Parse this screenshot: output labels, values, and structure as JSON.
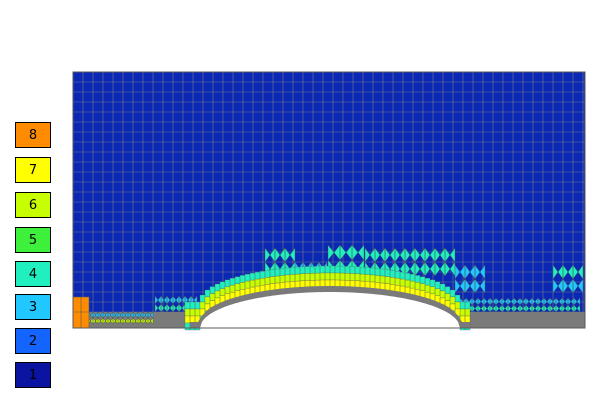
{
  "legend": {
    "items": [
      {
        "label": "8",
        "color": "#ff8c00"
      },
      {
        "label": "7",
        "color": "#ffff00"
      },
      {
        "label": "6",
        "color": "#c8ff00"
      },
      {
        "label": "5",
        "color": "#3cf03c"
      },
      {
        "label": "4",
        "color": "#20f0c0"
      },
      {
        "label": "3",
        "color": "#20c8ff"
      },
      {
        "label": "2",
        "color": "#1464ff"
      },
      {
        "label": "1",
        "color": "#0a14a0"
      }
    ]
  },
  "colors": {
    "background_level": "#0a28b4",
    "grid_lines": "#8a8a8a",
    "bump": "#ffffff",
    "boundary": "#7a7a7a"
  }
}
